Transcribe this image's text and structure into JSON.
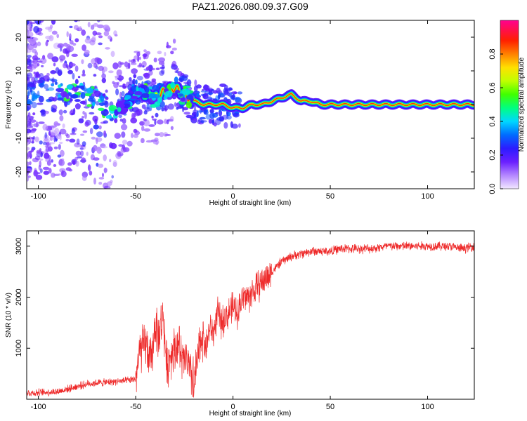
{
  "title": "PAZ1.2026.080.09.37.G09",
  "colors": {
    "snr_line": "#ee2a2a",
    "frame": "#000000"
  },
  "chart_data": [
    {
      "type": "heatmap",
      "xlabel": "Height of straight line (km)",
      "ylabel": "Frequency (Hz)",
      "xlim": [
        -106,
        124
      ],
      "ylim": [
        -25,
        25
      ],
      "xticks": [
        -100,
        -50,
        0,
        50,
        100
      ],
      "yticks": [
        -20,
        -10,
        0,
        10,
        20
      ],
      "ridge": {
        "x": [
          -100,
          -90,
          -80,
          -70,
          -65,
          -60,
          -55,
          -50,
          -45,
          -40,
          -35,
          -30,
          -25,
          -20,
          -15,
          -10,
          -5,
          0,
          5,
          10,
          15,
          20,
          25,
          30,
          35,
          40,
          45,
          50,
          60,
          70,
          80,
          90,
          100,
          110,
          122
        ],
        "y": [
          3,
          4,
          3,
          2,
          -1,
          -2,
          0,
          4,
          3,
          2,
          4,
          5,
          3,
          1,
          0,
          0,
          0,
          -1,
          -1,
          0,
          0,
          1,
          2,
          3,
          1,
          1,
          0,
          0,
          0,
          0,
          0,
          0,
          0,
          0,
          0
        ]
      },
      "colorbar": {
        "label": "Normalized spectral amplitude",
        "range": [
          0,
          1
        ],
        "ticks": [
          "0.0",
          "0.2",
          "0.4",
          "0.6",
          "0.8"
        ]
      }
    },
    {
      "type": "line",
      "xlabel": "Height of straight line (km)",
      "ylabel": "SNR (10 * v/v)",
      "xlim": [
        -106,
        124
      ],
      "ylim": [
        0,
        3300
      ],
      "xticks": [
        -100,
        -50,
        0,
        50,
        100
      ],
      "yticks": [
        1000,
        2000,
        3000
      ],
      "series": [
        {
          "x": [
            -106,
            -100,
            -90,
            -85,
            -80,
            -75,
            -70,
            -65,
            -60,
            -55,
            -52,
            -50,
            -48,
            -45,
            -42,
            -40,
            -38,
            -36,
            -34,
            -32,
            -30,
            -28,
            -26,
            -24,
            -22,
            -20,
            -18,
            -16,
            -14,
            -12,
            -10,
            -8,
            -6,
            -4,
            -2,
            0,
            2,
            4,
            6,
            8,
            10,
            15,
            20,
            25,
            30,
            35,
            40,
            45,
            50,
            55,
            60,
            70,
            80,
            90,
            100,
            110,
            118,
            124
          ],
          "values": [
            120,
            130,
            150,
            200,
            250,
            300,
            320,
            330,
            350,
            360,
            380,
            400,
            900,
            1100,
            700,
            1500,
            1200,
            1700,
            600,
            900,
            1000,
            1100,
            700,
            800,
            500,
            300,
            800,
            1300,
            1000,
            1400,
            1300,
            1700,
            1500,
            1600,
            1700,
            1800,
            1700,
            1900,
            2000,
            2000,
            2100,
            2300,
            2500,
            2700,
            2800,
            2850,
            2900,
            2900,
            2900,
            2950,
            2950,
            2950,
            3000,
            3000,
            3000,
            3000,
            2950,
            3000
          ]
        }
      ]
    }
  ]
}
